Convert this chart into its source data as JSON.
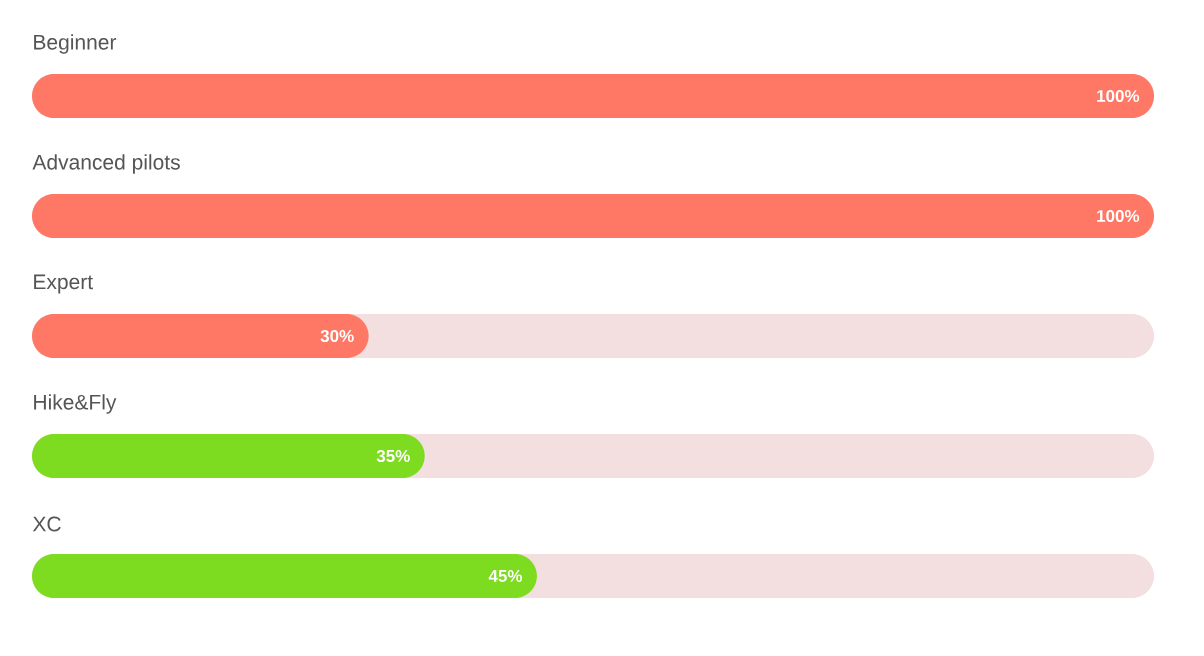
{
  "chart_data": {
    "type": "bar",
    "orientation": "horizontal",
    "categories": [
      "Beginner",
      "Advanced pilots",
      "Expert",
      "Hike&Fly",
      "XC"
    ],
    "values": [
      100,
      100,
      30,
      35,
      45
    ],
    "value_labels": [
      "100%",
      "100%",
      "30%",
      "35%",
      "45%"
    ],
    "colors": [
      "#ff7866",
      "#ff7866",
      "#ff7866",
      "#7ddc1f",
      "#7ddc1f"
    ],
    "xlim": [
      0,
      100
    ]
  }
}
